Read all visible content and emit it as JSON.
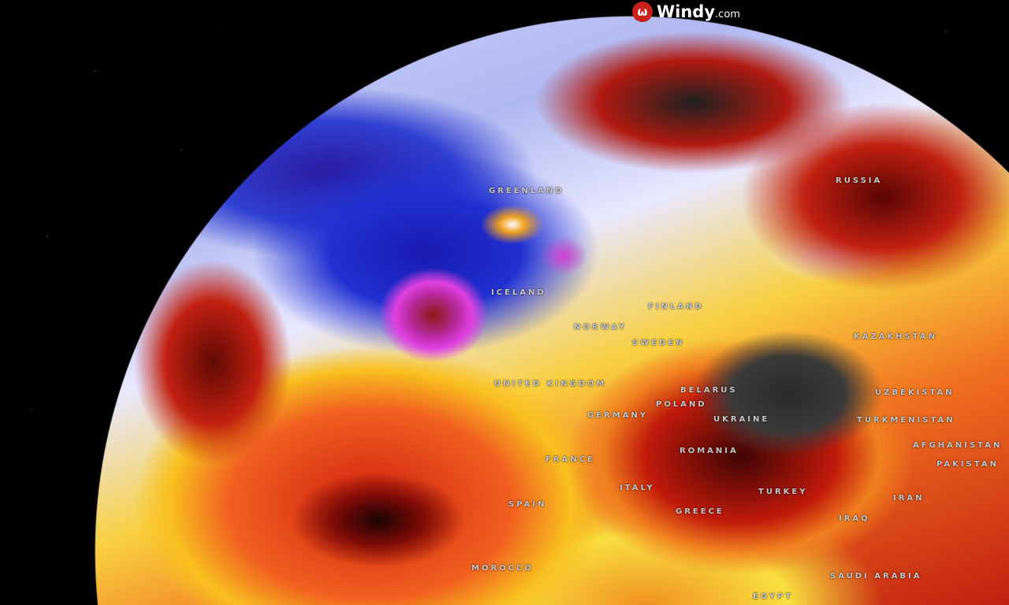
{
  "brand": {
    "name": "Windy",
    "suffix": ".com",
    "icon": "windy-logo-icon",
    "icon_color": "#c8201a"
  },
  "labels": [
    {
      "id": "greenland",
      "text": "GREENLAND"
    },
    {
      "id": "russia",
      "text": "RUSSIA"
    },
    {
      "id": "iceland",
      "text": "ICELAND"
    },
    {
      "id": "finland",
      "text": "FINLAND"
    },
    {
      "id": "norway",
      "text": "NORWAY"
    },
    {
      "id": "sweden",
      "text": "SWEDEN"
    },
    {
      "id": "united-kingdom",
      "text": "UNITED KINGDOM"
    },
    {
      "id": "belarus",
      "text": "BELARUS"
    },
    {
      "id": "poland",
      "text": "POLAND"
    },
    {
      "id": "germany",
      "text": "GERMANY"
    },
    {
      "id": "ukraine",
      "text": "UKRAINE"
    },
    {
      "id": "kazakhstan",
      "text": "KAZAKHSTAN"
    },
    {
      "id": "uzbekistan",
      "text": "UZBEKISTAN"
    },
    {
      "id": "turkmenistan",
      "text": "TURKMENISTAN"
    },
    {
      "id": "afghanistan",
      "text": "AFGHANISTAN"
    },
    {
      "id": "pakistan",
      "text": "PAKISTAN"
    },
    {
      "id": "romania",
      "text": "ROMANIA"
    },
    {
      "id": "france",
      "text": "FRANCE"
    },
    {
      "id": "italy",
      "text": "ITALY"
    },
    {
      "id": "spain",
      "text": "SPAIN"
    },
    {
      "id": "greece",
      "text": "GREECE"
    },
    {
      "id": "turkey",
      "text": "TURKEY"
    },
    {
      "id": "iran",
      "text": "IRAN"
    },
    {
      "id": "iraq",
      "text": "IRAQ"
    },
    {
      "id": "morocco",
      "text": "MOROCCO"
    },
    {
      "id": "saudi-arabia",
      "text": "SAUDI ARABIA"
    },
    {
      "id": "egypt",
      "text": "EGYPT"
    }
  ]
}
